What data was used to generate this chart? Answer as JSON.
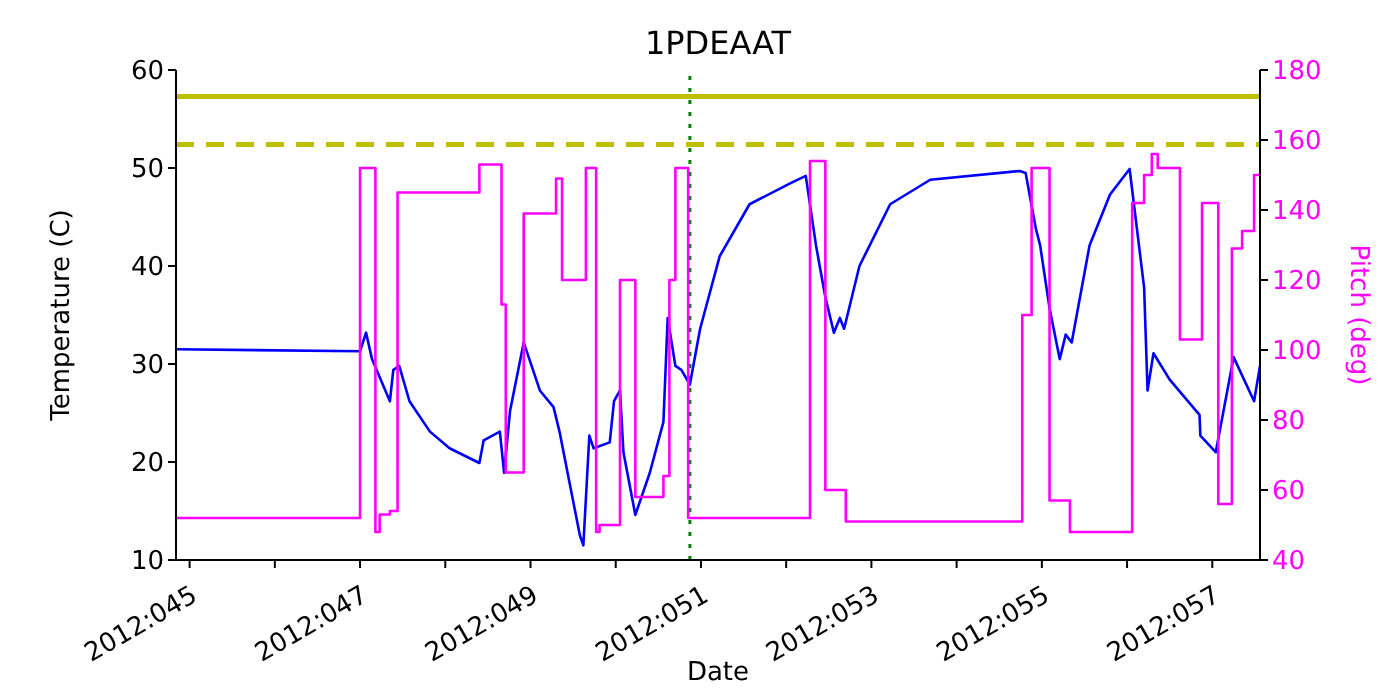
{
  "chart_data": {
    "type": "line",
    "title": "1PDEAAT",
    "xlabel": "Date",
    "ylabel": "Temperature (C)",
    "y2label": "Pitch (deg)",
    "xlim": [
      "2012-02-13T20:10",
      "2012-02-26T13:26"
    ],
    "xticks": [
      {
        "value": "2012-02-14",
        "label": "2012:045"
      },
      {
        "value": "2012-02-15",
        "label": null
      },
      {
        "value": "2012-02-16",
        "label": "2012:047"
      },
      {
        "value": "2012-02-17",
        "label": null
      },
      {
        "value": "2012-02-18",
        "label": "2012:049"
      },
      {
        "value": "2012-02-19",
        "label": null
      },
      {
        "value": "2012-02-20",
        "label": "2012:051"
      },
      {
        "value": "2012-02-21",
        "label": null
      },
      {
        "value": "2012-02-22",
        "label": "2012:053"
      },
      {
        "value": "2012-02-23",
        "label": null
      },
      {
        "value": "2012-02-24",
        "label": "2012:055"
      },
      {
        "value": "2012-02-25",
        "label": null
      },
      {
        "value": "2012-02-26",
        "label": "2012:057"
      }
    ],
    "ylim": [
      10,
      60
    ],
    "yticks": [
      10,
      20,
      30,
      40,
      50,
      60
    ],
    "y2lim": [
      40,
      180
    ],
    "y2ticks": [
      40,
      60,
      80,
      100,
      120,
      140,
      160,
      180
    ],
    "grid": false,
    "legend": false,
    "marker": "none",
    "ref_lines": [
      {
        "axis": "y",
        "value": 57.3,
        "color": "#bfbf00",
        "line_style": "solid"
      },
      {
        "axis": "y",
        "value": 52.4,
        "color": "#bfbf00",
        "line_style": "dashed"
      },
      {
        "axis": "x",
        "value": "2012-02-19T20:53",
        "color": "#008000",
        "line_style": "dotted"
      }
    ],
    "series": [
      {
        "type": "line",
        "color": "#0000ff",
        "x": [
          "2012-02-13T20:10",
          "2012-02-16T00:00",
          "2012-02-16T01:41",
          "2012-02-16T03:22",
          "2012-02-16T08:24",
          "2012-02-16T09:22",
          "2012-02-16T11:02",
          "2012-02-16T13:55",
          "2012-02-16T19:41",
          "2012-02-17T01:12",
          "2012-02-17T09:36",
          "2012-02-17T10:48",
          "2012-02-17T15:22",
          "2012-02-17T16:34",
          "2012-02-17T18:14",
          "2012-02-17T22:05",
          "2012-02-18T02:38",
          "2012-02-18T06:29",
          "2012-02-18T08:10",
          "2012-02-18T11:02",
          "2012-02-18T13:55",
          "2012-02-18T14:53",
          "2012-02-18T16:34",
          "2012-02-18T17:46",
          "2012-02-18T22:19",
          "2012-02-18T23:31",
          "2012-02-19T01:12",
          "2012-02-19T02:10",
          "2012-02-19T05:31",
          "2012-02-19T09:36",
          "2012-02-19T13:26",
          "2012-02-19T14:38",
          "2012-02-19T16:48",
          "2012-02-19T18:29",
          "2012-02-19T20:53",
          "2012-02-19T23:46",
          "2012-02-20T05:17",
          "2012-02-20T13:41",
          "2012-02-21T00:58",
          "2012-02-21T05:31",
          "2012-02-21T08:24",
          "2012-02-21T11:02",
          "2012-02-21T13:26",
          "2012-02-21T15:07",
          "2012-02-21T16:19",
          "2012-02-21T20:38",
          "2012-02-22T05:17",
          "2012-02-22T16:34",
          "2012-02-23T17:46",
          "2012-02-23T19:26",
          "2012-02-23T22:19",
          "2012-02-23T23:31",
          "2012-02-24T02:10",
          "2012-02-24T05:02",
          "2012-02-24T06:43",
          "2012-02-24T08:24",
          "2012-02-24T13:26",
          "2012-02-24T19:12",
          "2012-02-25T00:43",
          "2012-02-25T04:48",
          "2012-02-25T05:46",
          "2012-02-25T07:26",
          "2012-02-25T12:00",
          "2012-02-25T20:24",
          "2012-02-25T20:38",
          "2012-02-26T00:58",
          "2012-02-26T06:00",
          "2012-02-26T11:46",
          "2012-02-26T13:26"
        ],
        "values": [
          31.5,
          31.3,
          33.2,
          30.5,
          26.2,
          29.4,
          29.8,
          26.2,
          23.1,
          21.4,
          19.9,
          22.2,
          23.1,
          18.9,
          25.2,
          32.2,
          27.3,
          25.6,
          23.1,
          17.8,
          12.5,
          11.5,
          22.7,
          21.4,
          22.0,
          26.2,
          27.3,
          21.0,
          14.6,
          18.9,
          24.1,
          34.7,
          29.8,
          29.4,
          27.9,
          33.6,
          41.0,
          46.3,
          48.4,
          49.2,
          42.1,
          36.8,
          33.2,
          34.7,
          33.6,
          40.0,
          46.3,
          48.8,
          49.7,
          49.5,
          43.8,
          42.1,
          35.7,
          30.5,
          33.0,
          32.2,
          42.1,
          47.3,
          49.9,
          37.8,
          27.3,
          31.1,
          28.4,
          24.8,
          22.7,
          21.0,
          30.7,
          26.2,
          29.8
        ]
      },
      {
        "type": "step",
        "axis": "y2",
        "color": "#ff00ff",
        "x": [
          "2012-02-13T20:10",
          "2012-02-16T00:00",
          "2012-02-16T04:19",
          "2012-02-16T05:31",
          "2012-02-16T08:24",
          "2012-02-16T10:34",
          "2012-02-17T09:36",
          "2012-02-17T15:50",
          "2012-02-17T17:02",
          "2012-02-17T22:05",
          "2012-02-18T07:12",
          "2012-02-18T08:53",
          "2012-02-18T15:36",
          "2012-02-18T18:29",
          "2012-02-18T19:26",
          "2012-02-19T01:12",
          "2012-02-19T05:31",
          "2012-02-19T13:26",
          "2012-02-19T15:07",
          "2012-02-19T16:48",
          "2012-02-19T20:24",
          "2012-02-21T06:43",
          "2012-02-21T11:02",
          "2012-02-21T16:48",
          "2012-02-23T18:29",
          "2012-02-23T21:07",
          "2012-02-24T02:10",
          "2012-02-24T07:55",
          "2012-02-25T01:26",
          "2012-02-25T04:48",
          "2012-02-25T06:58",
          "2012-02-25T08:38",
          "2012-02-25T14:53",
          "2012-02-25T21:07",
          "2012-02-26T01:41",
          "2012-02-26T05:31",
          "2012-02-26T08:24",
          "2012-02-26T11:46",
          "2012-02-26T13:26"
        ],
        "values": [
          52,
          152,
          48,
          53,
          54,
          145,
          153,
          113,
          65,
          139,
          149,
          120,
          152,
          48,
          50,
          120,
          58,
          64,
          120,
          152,
          52,
          154,
          60,
          51,
          110,
          152,
          57,
          48,
          142,
          150,
          156,
          152,
          103,
          142,
          56,
          129,
          134,
          150,
          150
        ]
      }
    ]
  }
}
